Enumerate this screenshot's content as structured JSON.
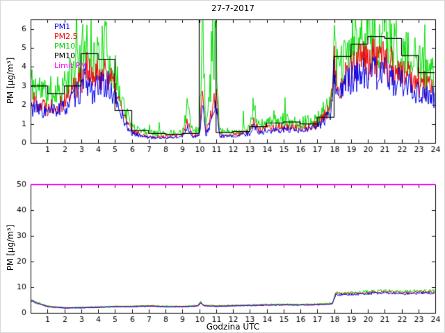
{
  "figure_title": "27-7-2017",
  "chart_data": [
    {
      "type": "line",
      "title": "27-7-2017",
      "ylabel": "PM [µg/m³]",
      "xlabel": "",
      "xlim": [
        0,
        24
      ],
      "ylim": [
        0,
        6.5
      ],
      "xticks": [
        1,
        2,
        3,
        4,
        5,
        6,
        7,
        8,
        9,
        10,
        11,
        12,
        13,
        14,
        15,
        16,
        17,
        18,
        19,
        20,
        21,
        22,
        23,
        24
      ],
      "yticks": [
        0,
        1,
        2,
        3,
        4,
        5,
        6
      ],
      "grid": false,
      "legend_position": "upper-left-inside",
      "legend": [
        {
          "label": "PM1",
          "color": "#0000ee"
        },
        {
          "label": "PM2.5",
          "color": "#ee0000"
        },
        {
          "label": "PM10",
          "color": "#00cc00"
        },
        {
          "label": "PM10",
          "color": "#000000"
        },
        {
          "label": "Limit PM",
          "color": "#ff00ff"
        }
      ],
      "series": [
        {
          "name": "PM10",
          "type": "noisy",
          "color": "#00dd00",
          "noise": 0.32,
          "spiky": true,
          "seed": 11,
          "x": [
            0,
            1,
            2,
            3,
            3.3,
            3.6,
            4,
            4.5,
            5,
            5.7,
            6,
            7,
            8,
            9,
            9.3,
            9.6,
            10,
            10.2,
            10.4,
            11,
            11.2,
            12,
            13,
            13.2,
            13.5,
            14,
            15,
            16,
            17,
            17.8,
            18,
            18.3,
            19,
            20,
            21,
            22,
            23,
            24
          ],
          "v": [
            3.2,
            2.6,
            3.0,
            4.4,
            5.6,
            4.3,
            4.5,
            5.0,
            3.6,
            1.5,
            0.9,
            0.55,
            0.5,
            0.6,
            1.9,
            0.6,
            0.7,
            5.8,
            0.8,
            5.8,
            0.7,
            0.55,
            0.8,
            1.9,
            0.9,
            1.05,
            1.2,
            1.05,
            1.2,
            2.2,
            4.8,
            3.6,
            5.2,
            5.7,
            5.6,
            4.7,
            4.1,
            3.4
          ]
        },
        {
          "name": "PM2.5",
          "type": "noisy",
          "color": "#ee0000",
          "noise": 0.26,
          "spiky": false,
          "seed": 22,
          "x": [
            0,
            1,
            2,
            3,
            3.3,
            3.6,
            4,
            4.5,
            5,
            5.7,
            6,
            7,
            8,
            9,
            9.3,
            9.6,
            10,
            10.2,
            10.4,
            11,
            11.2,
            12,
            13,
            13.2,
            13.5,
            14,
            15,
            16,
            17,
            17.8,
            18,
            18.3,
            19,
            20,
            21,
            22,
            23,
            24
          ],
          "v": [
            2.3,
            1.9,
            2.2,
            3.4,
            4.2,
            3.3,
            3.5,
            3.9,
            2.8,
            1.1,
            0.6,
            0.35,
            0.32,
            0.4,
            1.1,
            0.4,
            0.45,
            2.6,
            0.5,
            2.6,
            0.45,
            0.4,
            0.6,
            1.2,
            0.65,
            0.8,
            0.85,
            0.75,
            1.0,
            1.8,
            4.3,
            3.0,
            4.1,
            4.4,
            4.3,
            3.7,
            3.2,
            2.7
          ]
        },
        {
          "name": "PM1",
          "type": "noisy",
          "color": "#0000ee",
          "noise": 0.26,
          "spiky": false,
          "seed": 33,
          "x": [
            0,
            1,
            2,
            3,
            3.3,
            3.6,
            4,
            4.5,
            5,
            5.7,
            6,
            7,
            8,
            9,
            9.3,
            9.6,
            10,
            10.2,
            10.4,
            11,
            11.2,
            12,
            13,
            13.2,
            13.5,
            14,
            15,
            16,
            17,
            17.8,
            18,
            18.3,
            19,
            20,
            21,
            22,
            23,
            24
          ],
          "v": [
            1.9,
            1.6,
            1.85,
            2.8,
            3.4,
            2.7,
            2.9,
            3.2,
            2.3,
            0.9,
            0.5,
            0.28,
            0.26,
            0.32,
            0.85,
            0.33,
            0.36,
            1.9,
            0.4,
            1.9,
            0.36,
            0.33,
            0.5,
            0.95,
            0.55,
            0.62,
            0.7,
            0.6,
            0.85,
            1.5,
            3.8,
            2.6,
            3.4,
            3.7,
            3.6,
            3.1,
            2.7,
            2.3
          ]
        },
        {
          "name": "PM10 hourly",
          "type": "step",
          "color": "#000000",
          "values": [
            3.0,
            2.6,
            3.0,
            4.7,
            4.4,
            1.7,
            0.65,
            0.5,
            0.45,
            0.5,
            7.0,
            0.55,
            0.6,
            0.85,
            1.05,
            1.1,
            1.0,
            1.35,
            4.55,
            5.2,
            5.6,
            5.5,
            4.6,
            3.7
          ]
        },
        {
          "name": "Limit PM",
          "type": "hline",
          "color": "#ff00ff",
          "value": 50
        }
      ]
    },
    {
      "type": "line",
      "title": "",
      "ylabel": "PM [µg/m³]",
      "xlabel": "Godzina UTC",
      "xlim": [
        0,
        24
      ],
      "ylim": [
        0,
        50
      ],
      "xticks": [
        1,
        2,
        3,
        4,
        5,
        6,
        7,
        8,
        9,
        10,
        11,
        12,
        13,
        14,
        15,
        16,
        17,
        18,
        19,
        20,
        21,
        22,
        23,
        24
      ],
      "yticks": [
        0,
        10,
        20,
        30,
        40,
        50
      ],
      "grid": false,
      "series": [
        {
          "name": "PM10",
          "type": "noisy",
          "color": "#00dd00",
          "noise": 0.07,
          "spiky": false,
          "seed": 44,
          "x": [
            0,
            0.3,
            1,
            2,
            3,
            4,
            5,
            6,
            7,
            8,
            9,
            9.9,
            10.1,
            10.25,
            11,
            12,
            13,
            14,
            15,
            16,
            17,
            17.9,
            18.1,
            19,
            20,
            21,
            22,
            23,
            24
          ],
          "v": [
            5.3,
            4.3,
            2.7,
            2.1,
            2.2,
            2.4,
            2.6,
            2.6,
            2.9,
            2.6,
            2.6,
            2.9,
            4.4,
            3.0,
            2.8,
            3.0,
            3.1,
            3.3,
            3.4,
            3.3,
            3.5,
            3.8,
            7.8,
            7.9,
            8.3,
            8.7,
            8.2,
            8.6,
            8.6
          ]
        },
        {
          "name": "PM2.5",
          "type": "noisy",
          "color": "#ee0000",
          "noise": 0.06,
          "spiky": false,
          "seed": 55,
          "x": [
            0,
            0.3,
            1,
            2,
            3,
            4,
            5,
            6,
            7,
            8,
            9,
            9.9,
            10.1,
            10.25,
            11,
            12,
            13,
            14,
            15,
            16,
            17,
            17.9,
            18.1,
            19,
            20,
            21,
            22,
            23,
            24
          ],
          "v": [
            5.1,
            4.1,
            2.55,
            1.95,
            2.05,
            2.25,
            2.45,
            2.45,
            2.75,
            2.45,
            2.45,
            2.75,
            4.15,
            2.85,
            2.65,
            2.85,
            2.95,
            3.15,
            3.2,
            3.15,
            3.35,
            3.6,
            7.4,
            7.5,
            7.9,
            8.25,
            7.75,
            8.15,
            8.15
          ]
        },
        {
          "name": "PM1",
          "type": "noisy",
          "color": "#0000ee",
          "noise": 0.06,
          "spiky": false,
          "seed": 66,
          "x": [
            0,
            0.3,
            1,
            2,
            3,
            4,
            5,
            6,
            7,
            8,
            9,
            9.9,
            10.1,
            10.25,
            11,
            12,
            13,
            14,
            15,
            16,
            17,
            17.9,
            18.1,
            19,
            20,
            21,
            22,
            23,
            24
          ],
          "v": [
            4.9,
            3.95,
            2.4,
            1.85,
            1.95,
            2.15,
            2.35,
            2.35,
            2.6,
            2.35,
            2.35,
            2.6,
            3.9,
            2.7,
            2.5,
            2.7,
            2.8,
            3.0,
            3.05,
            3.0,
            3.2,
            3.4,
            7.0,
            7.1,
            7.45,
            7.8,
            7.3,
            7.7,
            7.7
          ]
        },
        {
          "name": "Limit PM",
          "type": "hline",
          "color": "#ff00ff",
          "value": 50
        }
      ]
    }
  ]
}
